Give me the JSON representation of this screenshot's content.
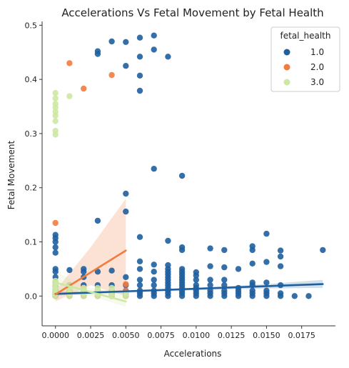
{
  "chart_data": {
    "type": "scatter",
    "title": "Accelerations Vs Fetal Movement by Fetal Health",
    "xlabel": "Accelerations",
    "ylabel": "Fetal Movement",
    "xlim": [
      -0.00095,
      0.0199
    ],
    "ylim": [
      -0.055,
      0.507
    ],
    "x_ticks": [
      0.0,
      0.0025,
      0.005,
      0.0075,
      0.01,
      0.0125,
      0.015,
      0.0175
    ],
    "x_tick_labels": [
      "0.0000",
      "0.0025",
      "0.0050",
      "0.0075",
      "0.0100",
      "0.0125",
      "0.0150",
      "0.0175"
    ],
    "y_ticks": [
      0.0,
      0.1,
      0.2,
      0.3,
      0.4,
      0.5
    ],
    "y_tick_labels": [
      "0.0",
      "0.1",
      "0.2",
      "0.3",
      "0.4",
      "0.5"
    ],
    "grid": false,
    "legend": {
      "title": "fetal_health",
      "position": "top-right"
    },
    "series": [
      {
        "name": "1.0",
        "color": "#1f5f9e",
        "points": [
          [
            0,
            0.0
          ],
          [
            0,
            0.002
          ],
          [
            0,
            0.005
          ],
          [
            0,
            0.008
          ],
          [
            0,
            0.012
          ],
          [
            0,
            0.018
          ],
          [
            0,
            0.025
          ],
          [
            0,
            0.035
          ],
          [
            0,
            0.045
          ],
          [
            0,
            0.05
          ],
          [
            0,
            0.08
          ],
          [
            0,
            0.09
          ],
          [
            0,
            0.1
          ],
          [
            0,
            0.107
          ],
          [
            0,
            0.113
          ],
          [
            0.001,
            0.0
          ],
          [
            0.001,
            0.005
          ],
          [
            0.001,
            0.01
          ],
          [
            0.001,
            0.02
          ],
          [
            0.001,
            0.048
          ],
          [
            0.002,
            0.0
          ],
          [
            0.002,
            0.005
          ],
          [
            0.002,
            0.01
          ],
          [
            0.002,
            0.02
          ],
          [
            0.002,
            0.035
          ],
          [
            0.002,
            0.045
          ],
          [
            0.002,
            0.05
          ],
          [
            0.003,
            0.0
          ],
          [
            0.003,
            0.005
          ],
          [
            0.003,
            0.01
          ],
          [
            0.003,
            0.02
          ],
          [
            0.003,
            0.045
          ],
          [
            0.003,
            0.139
          ],
          [
            0.003,
            0.447
          ],
          [
            0.003,
            0.452
          ],
          [
            0.004,
            0.0
          ],
          [
            0.004,
            0.005
          ],
          [
            0.004,
            0.01
          ],
          [
            0.004,
            0.02
          ],
          [
            0.004,
            0.047
          ],
          [
            0.004,
            0.47
          ],
          [
            0.005,
            0.0
          ],
          [
            0.005,
            0.005
          ],
          [
            0.005,
            0.01
          ],
          [
            0.005,
            0.02
          ],
          [
            0.005,
            0.035
          ],
          [
            0.005,
            0.156
          ],
          [
            0.005,
            0.189
          ],
          [
            0.005,
            0.425
          ],
          [
            0.005,
            0.469
          ],
          [
            0.006,
            0.0
          ],
          [
            0.006,
            0.005
          ],
          [
            0.006,
            0.01
          ],
          [
            0.006,
            0.02
          ],
          [
            0.006,
            0.03
          ],
          [
            0.006,
            0.05
          ],
          [
            0.006,
            0.064
          ],
          [
            0.006,
            0.109
          ],
          [
            0.006,
            0.379
          ],
          [
            0.006,
            0.407
          ],
          [
            0.006,
            0.442
          ],
          [
            0.006,
            0.477
          ],
          [
            0.007,
            0.0
          ],
          [
            0.007,
            0.005
          ],
          [
            0.007,
            0.01
          ],
          [
            0.007,
            0.02
          ],
          [
            0.007,
            0.03
          ],
          [
            0.007,
            0.045
          ],
          [
            0.007,
            0.058
          ],
          [
            0.007,
            0.235
          ],
          [
            0.007,
            0.455
          ],
          [
            0.007,
            0.481
          ],
          [
            0.008,
            0.0
          ],
          [
            0.008,
            0.005
          ],
          [
            0.008,
            0.01
          ],
          [
            0.008,
            0.015
          ],
          [
            0.008,
            0.02
          ],
          [
            0.008,
            0.025
          ],
          [
            0.008,
            0.03
          ],
          [
            0.008,
            0.035
          ],
          [
            0.008,
            0.04
          ],
          [
            0.008,
            0.045
          ],
          [
            0.008,
            0.05
          ],
          [
            0.008,
            0.057
          ],
          [
            0.008,
            0.102
          ],
          [
            0.008,
            0.442
          ],
          [
            0.009,
            0.0
          ],
          [
            0.009,
            0.005
          ],
          [
            0.009,
            0.01
          ],
          [
            0.009,
            0.015
          ],
          [
            0.009,
            0.02
          ],
          [
            0.009,
            0.025
          ],
          [
            0.009,
            0.03
          ],
          [
            0.009,
            0.035
          ],
          [
            0.009,
            0.04
          ],
          [
            0.009,
            0.045
          ],
          [
            0.009,
            0.05
          ],
          [
            0.009,
            0.085
          ],
          [
            0.009,
            0.09
          ],
          [
            0.009,
            0.222
          ],
          [
            0.01,
            0.0
          ],
          [
            0.01,
            0.005
          ],
          [
            0.01,
            0.01
          ],
          [
            0.01,
            0.015
          ],
          [
            0.01,
            0.02
          ],
          [
            0.01,
            0.03
          ],
          [
            0.01,
            0.038
          ],
          [
            0.01,
            0.044
          ],
          [
            0.011,
            0.0
          ],
          [
            0.011,
            0.005
          ],
          [
            0.011,
            0.01
          ],
          [
            0.011,
            0.02
          ],
          [
            0.011,
            0.03
          ],
          [
            0.011,
            0.055
          ],
          [
            0.011,
            0.088
          ],
          [
            0.012,
            0.0
          ],
          [
            0.012,
            0.005
          ],
          [
            0.012,
            0.01
          ],
          [
            0.012,
            0.02
          ],
          [
            0.012,
            0.03
          ],
          [
            0.012,
            0.053
          ],
          [
            0.012,
            0.085
          ],
          [
            0.013,
            0.0
          ],
          [
            0.013,
            0.005
          ],
          [
            0.013,
            0.01
          ],
          [
            0.013,
            0.015
          ],
          [
            0.013,
            0.05
          ],
          [
            0.014,
            0.0
          ],
          [
            0.014,
            0.005
          ],
          [
            0.014,
            0.01
          ],
          [
            0.014,
            0.02
          ],
          [
            0.014,
            0.025
          ],
          [
            0.014,
            0.06
          ],
          [
            0.014,
            0.085
          ],
          [
            0.014,
            0.092
          ],
          [
            0.015,
            0.0
          ],
          [
            0.015,
            0.005
          ],
          [
            0.015,
            0.01
          ],
          [
            0.015,
            0.025
          ],
          [
            0.015,
            0.063
          ],
          [
            0.015,
            0.115
          ],
          [
            0.016,
            0.0
          ],
          [
            0.016,
            0.005
          ],
          [
            0.016,
            0.02
          ],
          [
            0.016,
            0.055
          ],
          [
            0.016,
            0.073
          ],
          [
            0.016,
            0.084
          ],
          [
            0.017,
            0.0
          ],
          [
            0.018,
            0.0
          ],
          [
            0.019,
            0.085
          ]
        ],
        "trend": [
          [
            0,
            0.004
          ],
          [
            0.019,
            0.022
          ]
        ],
        "band": {
          "x": [
            0,
            0.005,
            0.01,
            0.015,
            0.019
          ],
          "lower": [
            0.001,
            0.006,
            0.011,
            0.014,
            0.015
          ],
          "upper": [
            0.008,
            0.01,
            0.015,
            0.022,
            0.03
          ]
        }
      },
      {
        "name": "2.0",
        "color": "#f27c3e",
        "points": [
          [
            0,
            0.0
          ],
          [
            0,
            0.01
          ],
          [
            0,
            0.02
          ],
          [
            0,
            0.135
          ],
          [
            0.001,
            0.0
          ],
          [
            0.001,
            0.01
          ],
          [
            0.001,
            0.43
          ],
          [
            0.002,
            0.0
          ],
          [
            0.002,
            0.015
          ],
          [
            0.002,
            0.383
          ],
          [
            0.003,
            0.0
          ],
          [
            0.003,
            0.01
          ],
          [
            0.004,
            0.0
          ],
          [
            0.004,
            0.408
          ],
          [
            0.005,
            0.0
          ],
          [
            0.005,
            0.01
          ],
          [
            0.005,
            0.022
          ]
        ],
        "trend": [
          [
            0,
            0.003
          ],
          [
            0.005,
            0.084
          ]
        ],
        "band": {
          "x": [
            0,
            0.0025,
            0.005
          ],
          "lower": [
            -0.01,
            0.02,
            0.0
          ],
          "upper": [
            0.01,
            0.09,
            0.18
          ]
        }
      },
      {
        "name": "3.0",
        "color": "#cde8a3",
        "points": [
          [
            0,
            0.0
          ],
          [
            0,
            0.004
          ],
          [
            0,
            0.008
          ],
          [
            0,
            0.012
          ],
          [
            0,
            0.016
          ],
          [
            0,
            0.02
          ],
          [
            0,
            0.024
          ],
          [
            0,
            0.028
          ],
          [
            0,
            0.298
          ],
          [
            0,
            0.305
          ],
          [
            0,
            0.323
          ],
          [
            0,
            0.333
          ],
          [
            0,
            0.34
          ],
          [
            0,
            0.348
          ],
          [
            0,
            0.355
          ],
          [
            0,
            0.365
          ],
          [
            0,
            0.375
          ],
          [
            0.001,
            0.0
          ],
          [
            0.001,
            0.005
          ],
          [
            0.001,
            0.01
          ],
          [
            0.001,
            0.015
          ],
          [
            0.001,
            0.02
          ],
          [
            0.001,
            0.369
          ],
          [
            0.002,
            0.0
          ],
          [
            0.002,
            0.005
          ],
          [
            0.002,
            0.01
          ],
          [
            0.002,
            0.015
          ],
          [
            0.003,
            0.0
          ],
          [
            0.003,
            0.005
          ],
          [
            0.003,
            0.01
          ],
          [
            0.003,
            0.015
          ],
          [
            0.004,
            0.0
          ],
          [
            0.004,
            0.005
          ],
          [
            0.004,
            0.01
          ],
          [
            0.004,
            0.015
          ],
          [
            0.005,
            0.0
          ],
          [
            0.005,
            0.005
          ]
        ],
        "trend": [
          [
            0,
            0.025
          ],
          [
            0.005,
            -0.01
          ]
        ],
        "band": {
          "x": [
            0,
            0.0025,
            0.005
          ],
          "lower": [
            0.005,
            0.0,
            -0.02
          ],
          "upper": [
            0.045,
            0.015,
            0.01
          ]
        }
      }
    ]
  }
}
